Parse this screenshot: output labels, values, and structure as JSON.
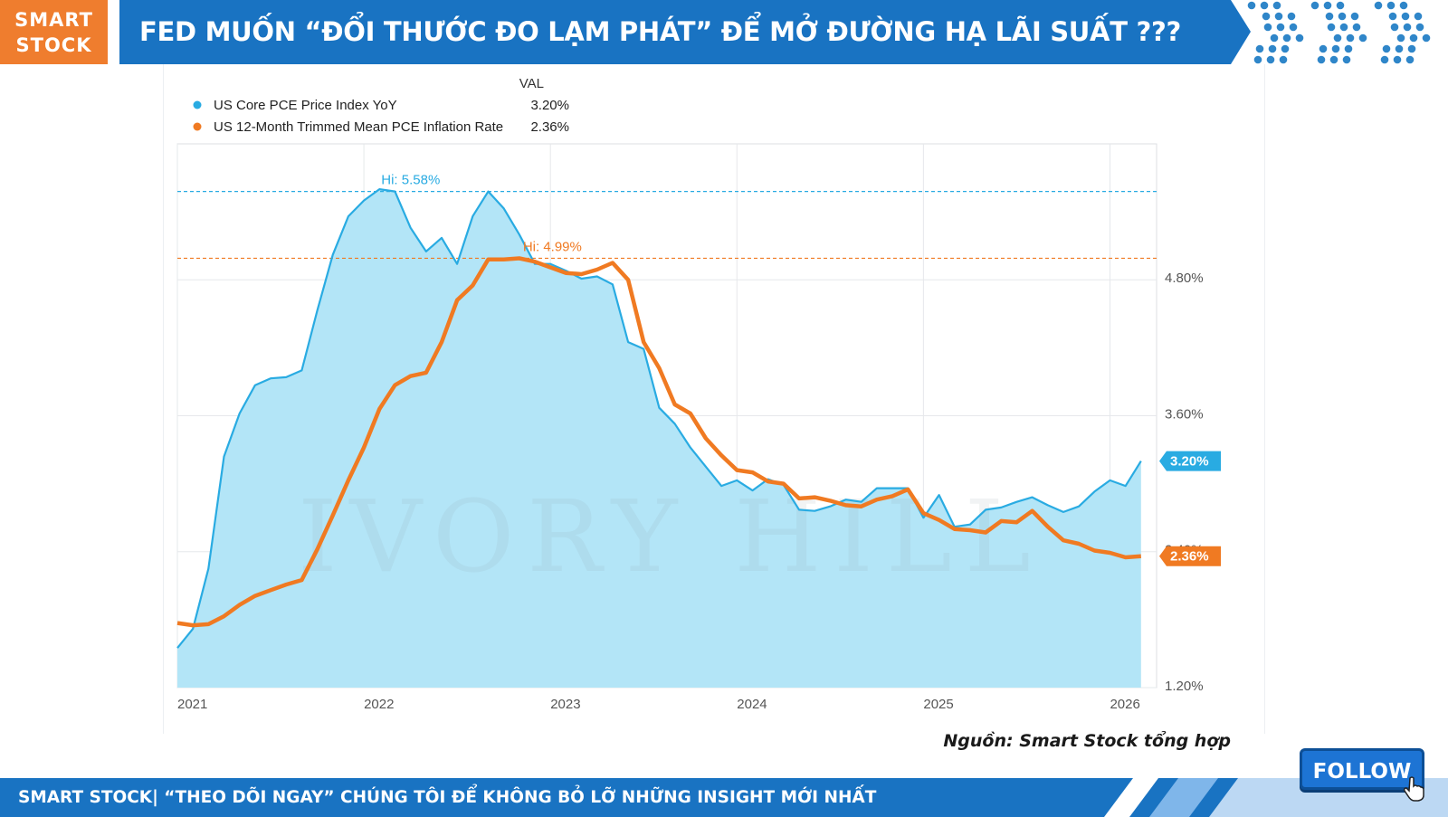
{
  "brand": {
    "line1": "SMART",
    "line2": "STOCK"
  },
  "title": "FED MUỐN “ĐỔI THƯỚC ĐO LẠM PHÁT” ĐỂ MỞ ĐƯỜNG HẠ LÃI SUẤT ???",
  "source": "Nguồn: Smart Stock tổng hợp",
  "follow_label": "FOLLOW",
  "footer_text": "SMART STOCK| “THEO DÕI NGAY” CHÚNG TÔI ĐỂ KHÔNG BỎ LỠ NHỮNG INSIGHT MỚI NHẤT",
  "colors": {
    "brand_orange": "#ef7d2e",
    "brand_blue": "#1973c2",
    "series_blue": "#29abe2",
    "series_orange": "#f07a22",
    "area_fill": "#b3e5f7"
  },
  "chart_data": {
    "type": "line",
    "legend": {
      "header": "VAL",
      "position": "top-left"
    },
    "grid": true,
    "x_ticks": [
      "2021",
      "2022",
      "2023",
      "2024",
      "2025",
      "2026"
    ],
    "y_ticks": [
      "1.20%",
      "2.40%",
      "3.60%",
      "4.80%"
    ],
    "ylim": [
      1.2,
      6.0
    ],
    "series": [
      {
        "name": "US Core PCE Price Index YoY",
        "last_value": "3.20%",
        "hi_label": "Hi: 5.58%",
        "hi_value": 5.58,
        "fill": true,
        "points": [
          [
            "2021-01",
            1.55
          ],
          [
            "2021-02",
            1.72
          ],
          [
            "2021-03",
            2.25
          ],
          [
            "2021-04",
            3.24
          ],
          [
            "2021-05",
            3.62
          ],
          [
            "2021-06",
            3.87
          ],
          [
            "2021-07",
            3.93
          ],
          [
            "2021-08",
            3.94
          ],
          [
            "2021-09",
            4.0
          ],
          [
            "2021-10",
            4.53
          ],
          [
            "2021-11",
            5.02
          ],
          [
            "2021-12",
            5.36
          ],
          [
            "2022-01",
            5.5
          ],
          [
            "2022-02",
            5.6
          ],
          [
            "2022-03",
            5.58
          ],
          [
            "2022-04",
            5.26
          ],
          [
            "2022-05",
            5.05
          ],
          [
            "2022-06",
            5.17
          ],
          [
            "2022-07",
            4.94
          ],
          [
            "2022-08",
            5.36
          ],
          [
            "2022-09",
            5.58
          ],
          [
            "2022-10",
            5.43
          ],
          [
            "2022-11",
            5.2
          ],
          [
            "2022-12",
            4.94
          ],
          [
            "2023-01",
            4.94
          ],
          [
            "2023-02",
            4.88
          ],
          [
            "2023-03",
            4.81
          ],
          [
            "2023-04",
            4.83
          ],
          [
            "2023-05",
            4.76
          ],
          [
            "2023-06",
            4.25
          ],
          [
            "2023-07",
            4.19
          ],
          [
            "2023-08",
            3.67
          ],
          [
            "2023-09",
            3.53
          ],
          [
            "2023-10",
            3.32
          ],
          [
            "2023-11",
            3.15
          ],
          [
            "2023-12",
            2.98
          ],
          [
            "2024-01",
            3.03
          ],
          [
            "2024-02",
            2.94
          ],
          [
            "2024-03",
            3.04
          ],
          [
            "2024-04",
            2.99
          ],
          [
            "2024-05",
            2.77
          ],
          [
            "2024-06",
            2.76
          ],
          [
            "2024-07",
            2.8
          ],
          [
            "2024-08",
            2.86
          ],
          [
            "2024-09",
            2.84
          ],
          [
            "2024-10",
            2.96
          ],
          [
            "2024-11",
            2.96
          ],
          [
            "2024-12",
            2.96
          ],
          [
            "2025-01",
            2.7
          ],
          [
            "2025-02",
            2.9
          ],
          [
            "2025-03",
            2.62
          ],
          [
            "2025-04",
            2.64
          ],
          [
            "2025-05",
            2.77
          ],
          [
            "2025-06",
            2.79
          ],
          [
            "2025-07",
            2.84
          ],
          [
            "2025-08",
            2.88
          ],
          [
            "2025-09",
            2.81
          ],
          [
            "2025-10",
            2.75
          ],
          [
            "2025-11",
            2.8
          ],
          [
            "2025-12",
            2.93
          ],
          [
            "2026-01",
            3.03
          ],
          [
            "2026-02",
            2.98
          ],
          [
            "2026-03",
            3.2
          ]
        ]
      },
      {
        "name": "US 12-Month Trimmed Mean PCE Inflation Rate",
        "last_value": "2.36%",
        "hi_label": "Hi: 4.99%",
        "hi_value": 4.99,
        "fill": false,
        "points": [
          [
            "2021-01",
            1.77
          ],
          [
            "2021-02",
            1.75
          ],
          [
            "2021-03",
            1.76
          ],
          [
            "2021-04",
            1.83
          ],
          [
            "2021-05",
            1.93
          ],
          [
            "2021-06",
            2.01
          ],
          [
            "2021-07",
            2.06
          ],
          [
            "2021-08",
            2.11
          ],
          [
            "2021-09",
            2.15
          ],
          [
            "2021-10",
            2.42
          ],
          [
            "2021-11",
            2.72
          ],
          [
            "2021-12",
            3.03
          ],
          [
            "2022-01",
            3.32
          ],
          [
            "2022-02",
            3.66
          ],
          [
            "2022-03",
            3.87
          ],
          [
            "2022-04",
            3.95
          ],
          [
            "2022-05",
            3.98
          ],
          [
            "2022-06",
            4.25
          ],
          [
            "2022-07",
            4.62
          ],
          [
            "2022-08",
            4.75
          ],
          [
            "2022-09",
            4.98
          ],
          [
            "2022-10",
            4.98
          ],
          [
            "2022-11",
            4.99
          ],
          [
            "2022-12",
            4.96
          ],
          [
            "2023-01",
            4.91
          ],
          [
            "2023-02",
            4.86
          ],
          [
            "2023-03",
            4.85
          ],
          [
            "2023-04",
            4.89
          ],
          [
            "2023-05",
            4.95
          ],
          [
            "2023-06",
            4.8
          ],
          [
            "2023-07",
            4.25
          ],
          [
            "2023-08",
            4.02
          ],
          [
            "2023-09",
            3.7
          ],
          [
            "2023-10",
            3.62
          ],
          [
            "2023-11",
            3.4
          ],
          [
            "2023-12",
            3.25
          ],
          [
            "2024-01",
            3.12
          ],
          [
            "2024-02",
            3.1
          ],
          [
            "2024-03",
            3.02
          ],
          [
            "2024-04",
            3.0
          ],
          [
            "2024-05",
            2.87
          ],
          [
            "2024-06",
            2.88
          ],
          [
            "2024-07",
            2.85
          ],
          [
            "2024-08",
            2.81
          ],
          [
            "2024-09",
            2.8
          ],
          [
            "2024-10",
            2.86
          ],
          [
            "2024-11",
            2.89
          ],
          [
            "2024-12",
            2.95
          ],
          [
            "2025-01",
            2.74
          ],
          [
            "2025-02",
            2.68
          ],
          [
            "2025-03",
            2.6
          ],
          [
            "2025-04",
            2.59
          ],
          [
            "2025-05",
            2.57
          ],
          [
            "2025-06",
            2.67
          ],
          [
            "2025-07",
            2.66
          ],
          [
            "2025-08",
            2.76
          ],
          [
            "2025-09",
            2.62
          ],
          [
            "2025-10",
            2.5
          ],
          [
            "2025-11",
            2.47
          ],
          [
            "2025-12",
            2.41
          ],
          [
            "2026-01",
            2.39
          ],
          [
            "2026-02",
            2.35
          ],
          [
            "2026-03",
            2.36
          ]
        ]
      }
    ]
  }
}
